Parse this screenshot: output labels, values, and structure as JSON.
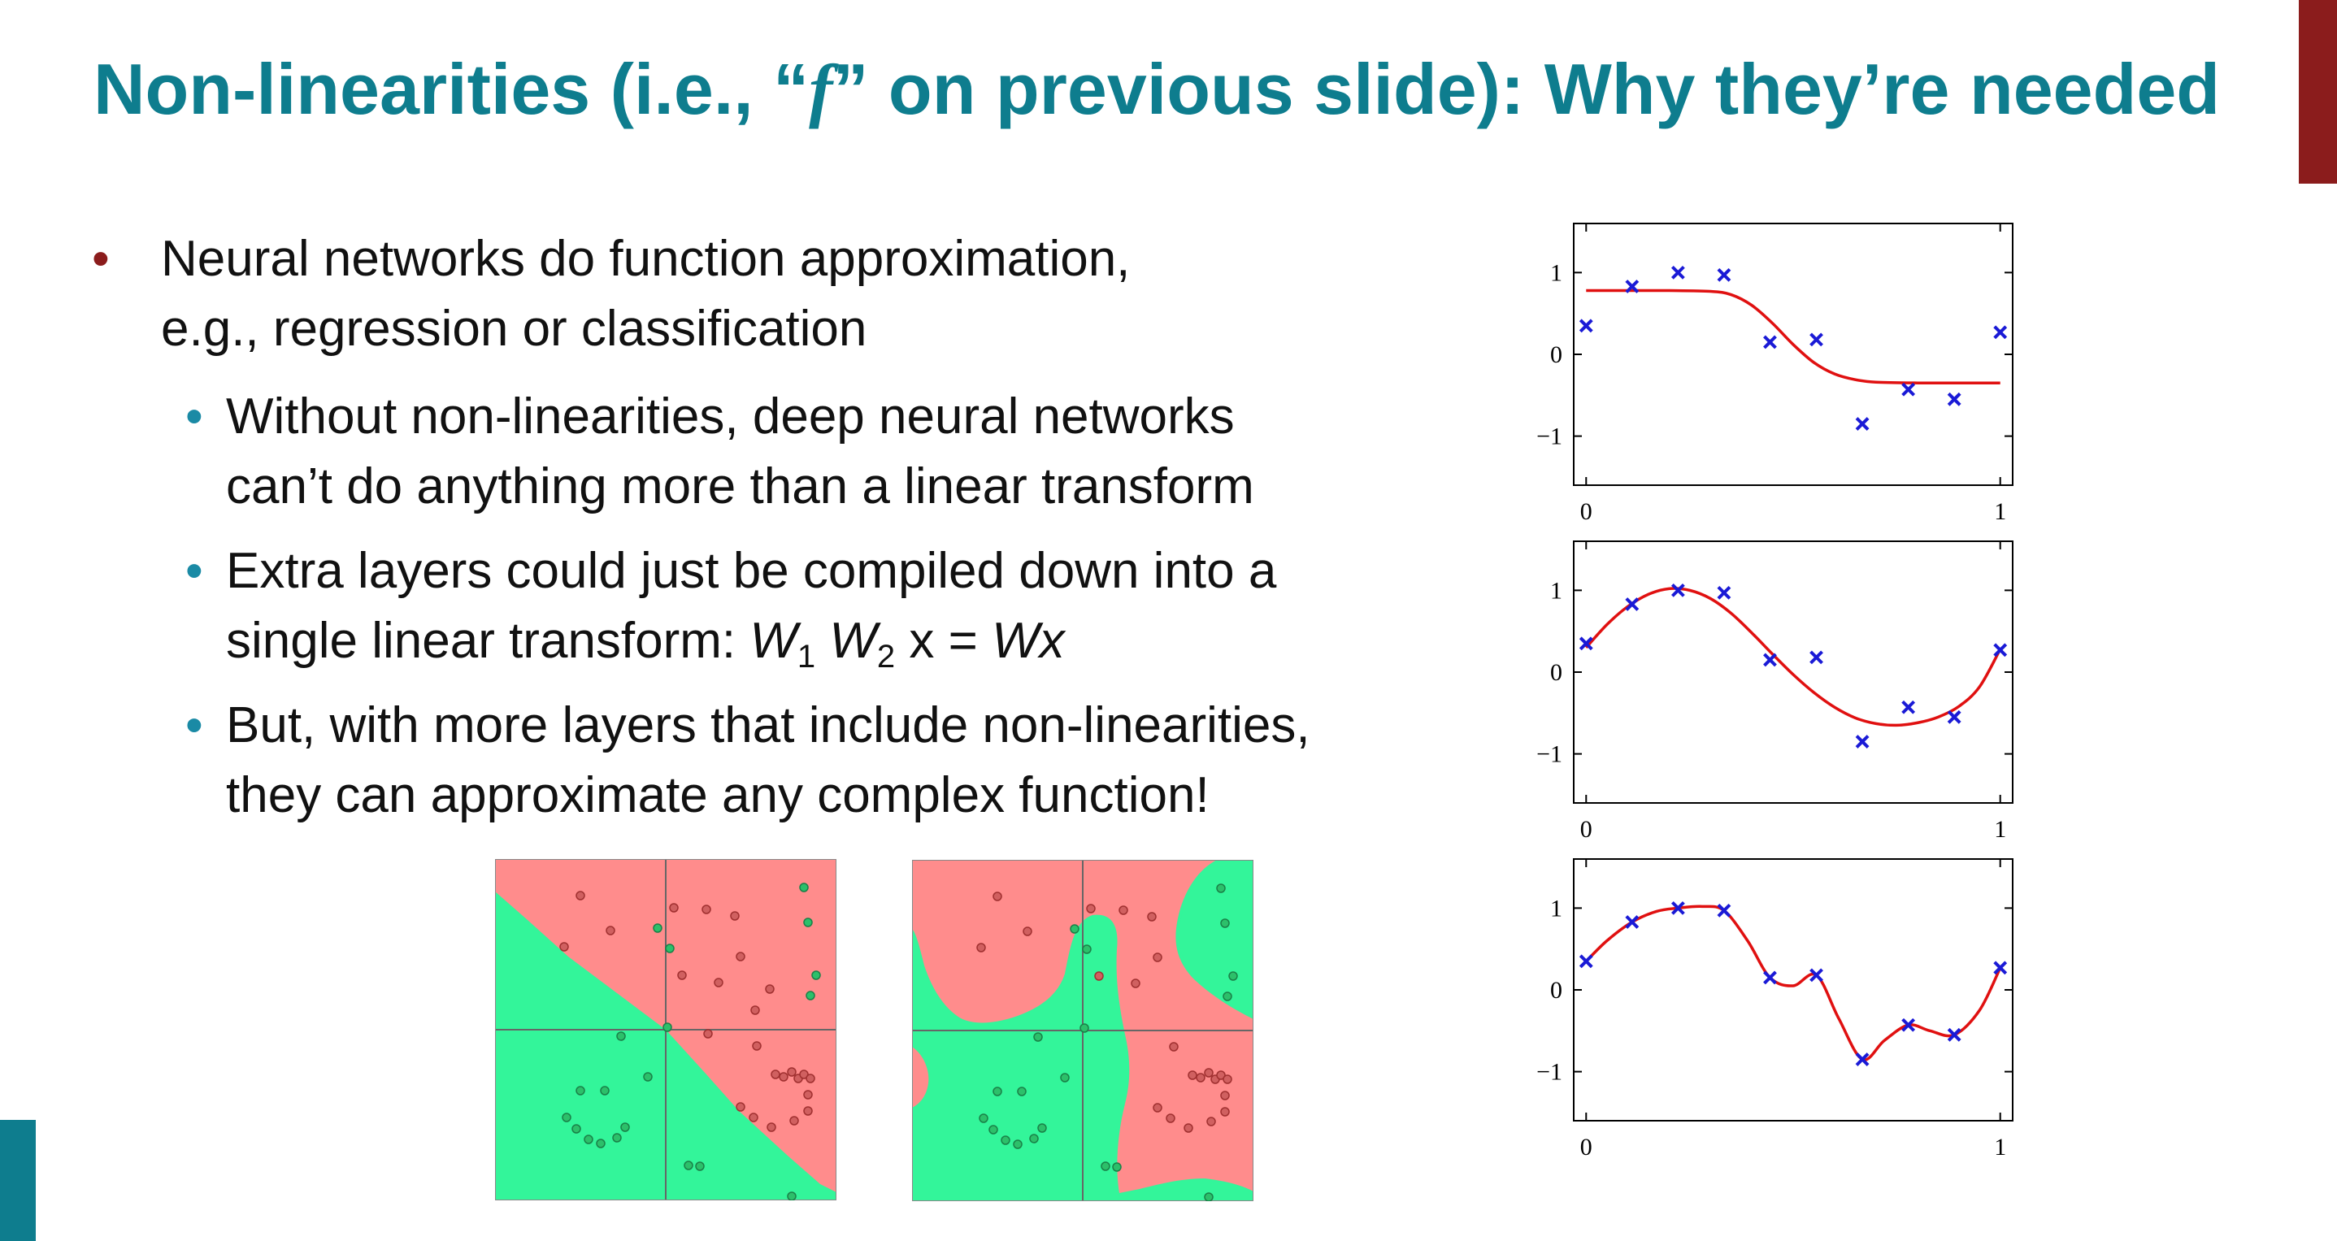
{
  "slide": {
    "title_pre": "Non-linearities (i.e., “",
    "title_italic": "f",
    "title_post": "” on previous slide): Why they’re needed",
    "accent_color_red": "#8b1c1c",
    "accent_color_teal": "#0e7d8e"
  },
  "bullets": {
    "b1_line1": "Neural networks do function approximation,",
    "b1_line2": "e.g., regression or classification",
    "b2_line1": "Without non-linearities, deep neural networks",
    "b2_line2": "can’t do anything more than a linear transform",
    "b3_line1": "Extra layers could just be compiled down into a",
    "b3_line2_pre": "single linear transform: ",
    "b3_w1": "W",
    "b3_sub1": "1",
    "b3_w2": "W",
    "b3_sub2": "2",
    "b3_mid": " x = ",
    "b3_wx": "Wx",
    "b4_line1": "But, with more layers that include non-linearities,",
    "b4_line2": "they can approximate any complex function!"
  },
  "classification": {
    "colors": {
      "red_region": "#ff8c8c",
      "green_region": "#33f59a"
    }
  },
  "chart_data": [
    {
      "type": "line",
      "y_tick_labels": [
        "1",
        "0",
        "−1"
      ],
      "x_tick_labels": [
        "0",
        "1"
      ],
      "points": {
        "x": [
          0,
          0.111,
          0.222,
          0.333,
          0.444,
          0.556,
          0.667,
          0.778,
          0.889,
          1.0
        ],
        "y": [
          0.35,
          0.83,
          1.0,
          0.97,
          0.15,
          0.18,
          -0.85,
          -0.43,
          -0.55,
          0.27
        ]
      },
      "curve": {
        "x": [
          0,
          0.1,
          0.2,
          0.3,
          0.35,
          0.4,
          0.45,
          0.5,
          0.55,
          0.6,
          0.65,
          0.7,
          0.8,
          0.9,
          1.0
        ],
        "y": [
          0.78,
          0.78,
          0.78,
          0.77,
          0.73,
          0.6,
          0.38,
          0.12,
          -0.1,
          -0.24,
          -0.31,
          -0.34,
          -0.35,
          -0.35,
          -0.35
        ]
      },
      "xlim": [
        -0.03,
        1.03
      ],
      "ylim": [
        -1.6,
        1.6
      ],
      "point_color": "#1a1ad6",
      "curve_color": "#e01010"
    },
    {
      "type": "line",
      "y_tick_labels": [
        "1",
        "0",
        "−1"
      ],
      "x_tick_labels": [
        "0",
        "1"
      ],
      "points": {
        "x": [
          0,
          0.111,
          0.222,
          0.333,
          0.444,
          0.556,
          0.667,
          0.778,
          0.889,
          1.0
        ],
        "y": [
          0.35,
          0.83,
          1.0,
          0.97,
          0.15,
          0.18,
          -0.85,
          -0.43,
          -0.55,
          0.27
        ]
      },
      "curve": {
        "x": [
          0,
          0.05,
          0.1,
          0.15,
          0.2,
          0.25,
          0.3,
          0.35,
          0.4,
          0.45,
          0.5,
          0.55,
          0.6,
          0.65,
          0.7,
          0.75,
          0.8,
          0.85,
          0.9,
          0.95,
          1.0
        ],
        "y": [
          0.3,
          0.58,
          0.8,
          0.95,
          1.02,
          1.0,
          0.9,
          0.72,
          0.48,
          0.22,
          -0.03,
          -0.25,
          -0.43,
          -0.56,
          -0.63,
          -0.65,
          -0.62,
          -0.55,
          -0.42,
          -0.18,
          0.28
        ]
      },
      "xlim": [
        -0.03,
        1.03
      ],
      "ylim": [
        -1.6,
        1.6
      ],
      "point_color": "#1a1ad6",
      "curve_color": "#e01010"
    },
    {
      "type": "line",
      "y_tick_labels": [
        "1",
        "0",
        "−1"
      ],
      "x_tick_labels": [
        "0",
        "1"
      ],
      "points": {
        "x": [
          0,
          0.111,
          0.222,
          0.333,
          0.444,
          0.556,
          0.667,
          0.778,
          0.889,
          1.0
        ],
        "y": [
          0.35,
          0.83,
          1.0,
          0.97,
          0.15,
          0.18,
          -0.85,
          -0.43,
          -0.55,
          0.27
        ]
      },
      "curve": {
        "x": [
          0,
          0.05,
          0.111,
          0.17,
          0.222,
          0.28,
          0.333,
          0.39,
          0.444,
          0.5,
          0.556,
          0.61,
          0.667,
          0.72,
          0.778,
          0.83,
          0.889,
          0.95,
          1.0
        ],
        "y": [
          0.35,
          0.6,
          0.83,
          0.96,
          1.0,
          1.02,
          0.97,
          0.6,
          0.15,
          0.05,
          0.18,
          -0.35,
          -0.85,
          -0.62,
          -0.43,
          -0.5,
          -0.55,
          -0.25,
          0.27
        ]
      },
      "xlim": [
        -0.03,
        1.03
      ],
      "ylim": [
        -1.6,
        1.6
      ],
      "point_color": "#1a1ad6",
      "curve_color": "#e01010"
    }
  ]
}
